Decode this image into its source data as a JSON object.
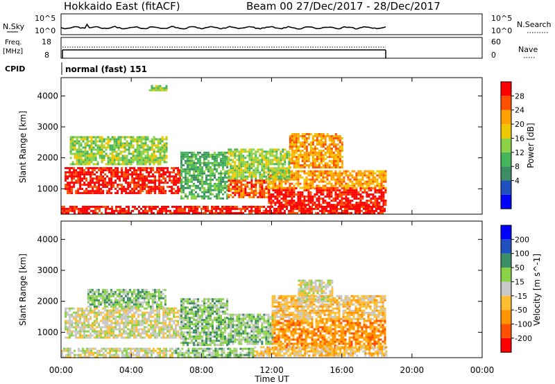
{
  "header": {
    "station": "Hokkaido East (fitACF)",
    "beam": "Beam 00",
    "dates": "27/Dec/2017 - 28/Dec/2017"
  },
  "top_panels": {
    "nsky_label": "N.Sky",
    "nsky_ticks": [
      "10^5",
      "10^0"
    ],
    "nsearch_label": "N.Search",
    "freq_label_1": "Freq.",
    "freq_label_2": "[MHz]",
    "freq_ticks": [
      "18",
      "8"
    ],
    "nave_ticks": [
      "60",
      "0"
    ],
    "nave_label": "Nave",
    "cpid_label": "CPID",
    "cpid_value": "normal (fast) 151"
  },
  "colors": {
    "power": [
      "#0000ff",
      "#2050c0",
      "#3c8c64",
      "#46b45a",
      "#8cd246",
      "#f0c800",
      "#ffa000",
      "#ff5000",
      "#ff0000"
    ],
    "velocity": [
      "#ff0000",
      "#ff5000",
      "#ff9600",
      "#ffbe32",
      "#c8c8c8",
      "#8cd246",
      "#3c8c64",
      "#2050c0",
      "#0000ff"
    ]
  },
  "chart_data": [
    {
      "type": "heatmap",
      "name": "power",
      "ylabel": "Slant Range [km]",
      "ylim": [
        180,
        4590
      ],
      "xlim": [
        0,
        24
      ],
      "y_ticks": [
        "4000",
        "3000",
        "2000",
        "1000"
      ],
      "colorbar_label": "Power [dB]",
      "colorbar_ticks": [
        "28",
        "24",
        "20",
        "16",
        "12",
        "8",
        "4"
      ],
      "regions": [
        {
          "x0": 0.2,
          "x1": 6.8,
          "y0": 850,
          "y1": 1700,
          "level": 8
        },
        {
          "x0": 6.8,
          "x1": 9.5,
          "y0": 700,
          "y1": 2200,
          "level": 3
        },
        {
          "x0": 9.5,
          "x1": 11.8,
          "y0": 700,
          "y1": 1300,
          "level": 7
        },
        {
          "x0": 11.8,
          "x1": 18.5,
          "y0": 450,
          "y1": 1050,
          "level": 8
        },
        {
          "x0": 11.8,
          "x1": 18.5,
          "y0": 1050,
          "y1": 1600,
          "level": 6
        },
        {
          "x0": 0.5,
          "x1": 6.0,
          "y0": 1800,
          "y1": 2700,
          "level": 4
        },
        {
          "x0": 13.0,
          "x1": 16.0,
          "y0": 1700,
          "y1": 2800,
          "level": 6
        },
        {
          "x0": 9.5,
          "x1": 13.0,
          "y0": 1300,
          "y1": 2300,
          "level": 4
        },
        {
          "x0": 0.0,
          "x1": 18.5,
          "y0": 200,
          "y1": 450,
          "level": 8
        },
        {
          "x0": 5.0,
          "x1": 6.0,
          "y0": 4200,
          "y1": 4350,
          "level": 4
        }
      ]
    },
    {
      "type": "heatmap",
      "name": "velocity",
      "ylabel": "Slant Range [km]",
      "ylim": [
        180,
        4590
      ],
      "xlim": [
        0,
        24
      ],
      "y_ticks": [
        "4000",
        "3000",
        "2000",
        "1000"
      ],
      "colorbar_label": "Velocity [m s^-1]",
      "colorbar_ticks": [
        "200",
        "100",
        "50",
        "15",
        "-15",
        "-50",
        "-100",
        "-200"
      ],
      "x_ticks": [
        "00:00",
        "04:00",
        "08:00",
        "12:00",
        "16:00",
        "20:00",
        "00:00"
      ],
      "xlabel": "Time UT",
      "regions": [
        {
          "x0": 0.2,
          "x1": 6.8,
          "y0": 800,
          "y1": 1800,
          "level": 4
        },
        {
          "x0": 6.8,
          "x1": 9.5,
          "y0": 600,
          "y1": 2100,
          "level": 5
        },
        {
          "x0": 9.5,
          "x1": 12.0,
          "y0": 600,
          "y1": 1600,
          "level": 5
        },
        {
          "x0": 12.0,
          "x1": 18.5,
          "y0": 500,
          "y1": 1400,
          "level": 2
        },
        {
          "x0": 12.0,
          "x1": 18.5,
          "y0": 1400,
          "y1": 2200,
          "level": 3
        },
        {
          "x0": 13.5,
          "x1": 15.5,
          "y0": 2000,
          "y1": 2700,
          "level": 4
        },
        {
          "x0": 0.0,
          "x1": 6.5,
          "y0": 200,
          "y1": 500,
          "level": 4
        },
        {
          "x0": 6.5,
          "x1": 11.0,
          "y0": 200,
          "y1": 500,
          "level": 5
        },
        {
          "x0": 11.0,
          "x1": 18.5,
          "y0": 250,
          "y1": 550,
          "level": 3
        },
        {
          "x0": 1.5,
          "x1": 6.0,
          "y0": 1800,
          "y1": 2400,
          "level": 5
        }
      ]
    }
  ]
}
